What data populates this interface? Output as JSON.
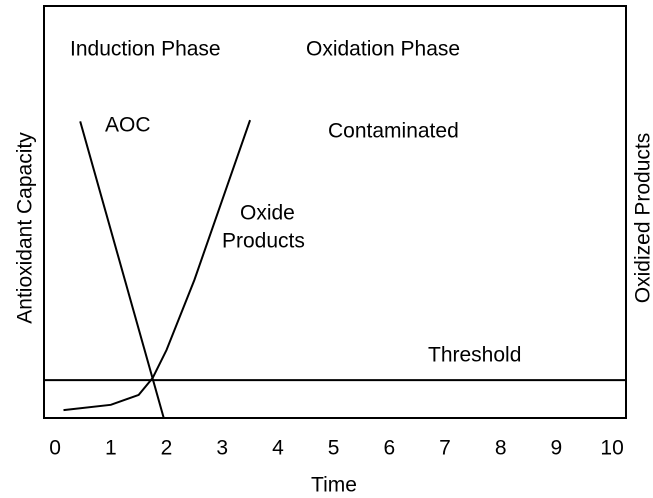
{
  "chart_data": {
    "type": "line",
    "xlabel": "Time",
    "ylabel": "Antioxidant Capacity",
    "y2label": "Oxidized Products",
    "xlim": [
      -0.2,
      10.25
    ],
    "xticks": [
      0,
      1,
      2,
      3,
      4,
      5,
      6,
      7,
      8,
      9,
      10
    ],
    "ylim": [
      0,
      100
    ],
    "series": [
      {
        "name": "AOC",
        "color": "#000000",
        "x": [
          0.45,
          1.95
        ],
        "values": [
          72,
          0
        ]
      },
      {
        "name": "Oxide Products",
        "color": "#000000",
        "x": [
          0.15,
          1.0,
          1.5,
          1.75,
          2.0,
          2.5,
          3.0,
          3.5
        ],
        "values": [
          1.9,
          3.2,
          5.6,
          9.7,
          16.5,
          33.5,
          52.9,
          72.3
        ]
      }
    ],
    "threshold": {
      "label": "Threshold",
      "value": 9.2
    },
    "annotations": [
      "Induction Phase",
      "Oxidation Phase",
      "Contaminated"
    ],
    "oxide_label": [
      "Oxide",
      "Products"
    ]
  }
}
